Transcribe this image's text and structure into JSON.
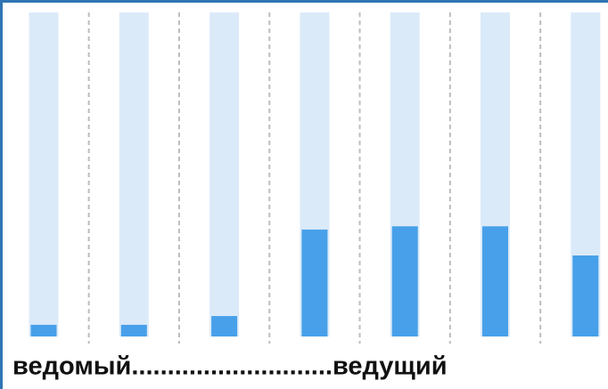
{
  "chart_data": {
    "type": "bar",
    "x_label": "ведомый............................ведущий",
    "categories": [
      null,
      null,
      null,
      null,
      null,
      null,
      null
    ],
    "values": [
      3.6,
      3.6,
      6.3,
      33,
      34,
      34,
      25
    ],
    "color": "#47a0e9",
    "track_color": "#dbeaf9",
    "ylim": [
      0,
      100
    ],
    "separators": true
  }
}
